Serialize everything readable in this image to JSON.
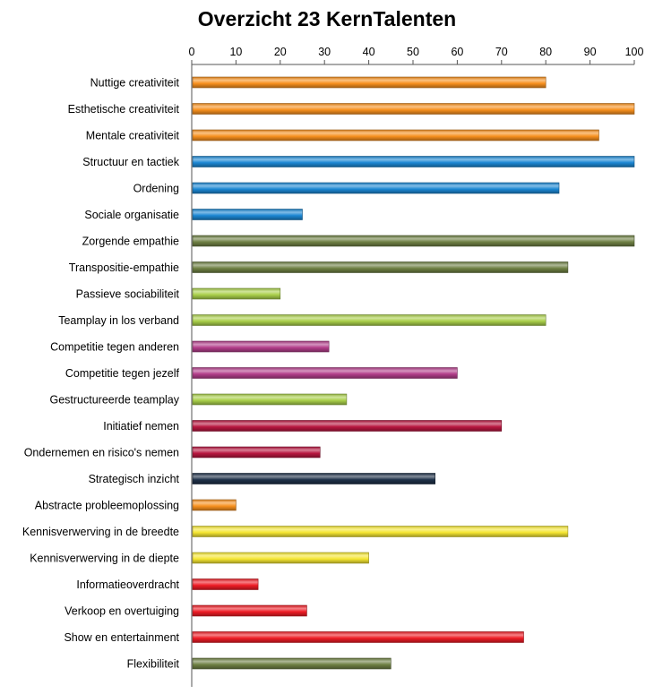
{
  "chart_data": {
    "type": "bar",
    "orientation": "horizontal",
    "title": "Overzicht 23 KernTalenten",
    "xlabel": "",
    "ylabel": "",
    "xlim": [
      0,
      100
    ],
    "x_ticks": [
      0,
      10,
      20,
      30,
      40,
      50,
      60,
      70,
      80,
      90,
      100
    ],
    "axis_position": "top",
    "grid": false,
    "legend": "none",
    "categories": [
      "Nuttige creativiteit",
      "Esthetische creativiteit",
      "Mentale creativiteit",
      "Structuur en tactiek",
      "Ordening",
      "Sociale organisatie",
      "Zorgende empathie",
      "Transpositie-empathie",
      "Passieve sociabiliteit",
      "Teamplay in los verband",
      "Competitie tegen anderen",
      "Competitie tegen jezelf",
      "Gestructureerde teamplay",
      "Initiatief nemen",
      "Ondernemen en risico's nemen",
      "Strategisch inzicht",
      "Abstracte probleemoplossing",
      "Kennisverwerving in de breedte",
      "Kennisverwerving in de diepte",
      "Informatieoverdracht",
      "Verkoop en overtuiging",
      "Show en entertainment",
      "Flexibiliteit"
    ],
    "values": [
      80,
      100,
      92,
      100,
      83,
      25,
      100,
      85,
      20,
      80,
      31,
      60,
      35,
      70,
      29,
      55,
      10,
      85,
      40,
      15,
      26,
      75,
      45
    ],
    "colors": [
      "#F7901E",
      "#F7901E",
      "#F7901E",
      "#1B87D3",
      "#1B87D3",
      "#1B87D3",
      "#6E8043",
      "#6E8043",
      "#A9CF4A",
      "#A9CF4A",
      "#B33E8A",
      "#B33E8A",
      "#A9CF4A",
      "#B8163F",
      "#B8163F",
      "#1E3048",
      "#F7901E",
      "#F5E632",
      "#F5E632",
      "#EE1C25",
      "#EE1C25",
      "#EE1C25",
      "#6E8043"
    ]
  }
}
